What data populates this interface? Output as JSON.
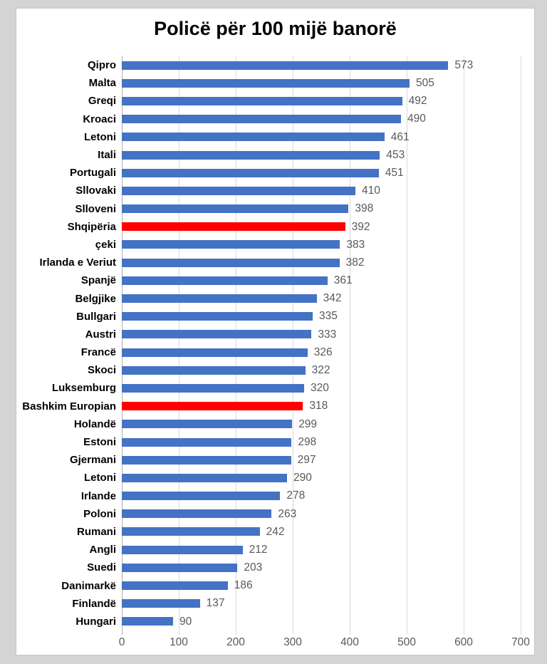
{
  "title": "Policë për 100 mijë banorë",
  "colors": {
    "bar_default": "#4472C4",
    "bar_highlight": "#FF0000",
    "gridline": "#d9d9d9",
    "axis_line": "#b0b0b0",
    "value_label": "#595959",
    "category_label": "#000000"
  },
  "chart_data": {
    "type": "bar",
    "orientation": "horizontal",
    "title": "Policë për 100 mijë banorë",
    "xlabel": "",
    "ylabel": "",
    "xlim": [
      0,
      700
    ],
    "xticks": [
      0,
      100,
      200,
      300,
      400,
      500,
      600,
      700
    ],
    "grid": true,
    "value_labels": true,
    "legend": false,
    "categories": [
      "Qipro",
      "Malta",
      "Greqi",
      "Kroaci",
      "Letoni",
      "Itali",
      "Portugali",
      "Sllovaki",
      "Slloveni",
      "Shqipëria",
      "çeki",
      "Irlanda e Veriut",
      "Spanjë",
      "Belgjike",
      "Bullgari",
      "Austri",
      "Francë",
      "Skoci",
      "Luksemburg",
      "Bashkim Europian",
      "Holandë",
      "Estoni",
      "Gjermani",
      "Letoni",
      "Irlande",
      "Poloni",
      "Rumani",
      "Angli",
      "Suedi",
      "Danimarkë",
      "Finlandë",
      "Hungari"
    ],
    "values": [
      573,
      505,
      492,
      490,
      461,
      453,
      451,
      410,
      398,
      392,
      383,
      382,
      361,
      342,
      335,
      333,
      326,
      322,
      320,
      318,
      299,
      298,
      297,
      290,
      278,
      263,
      242,
      212,
      203,
      186,
      137,
      90
    ],
    "highlight_indices": [
      9,
      19
    ],
    "highlight_meaning": "Shqipëria and Bashkim Europian shown in red"
  }
}
